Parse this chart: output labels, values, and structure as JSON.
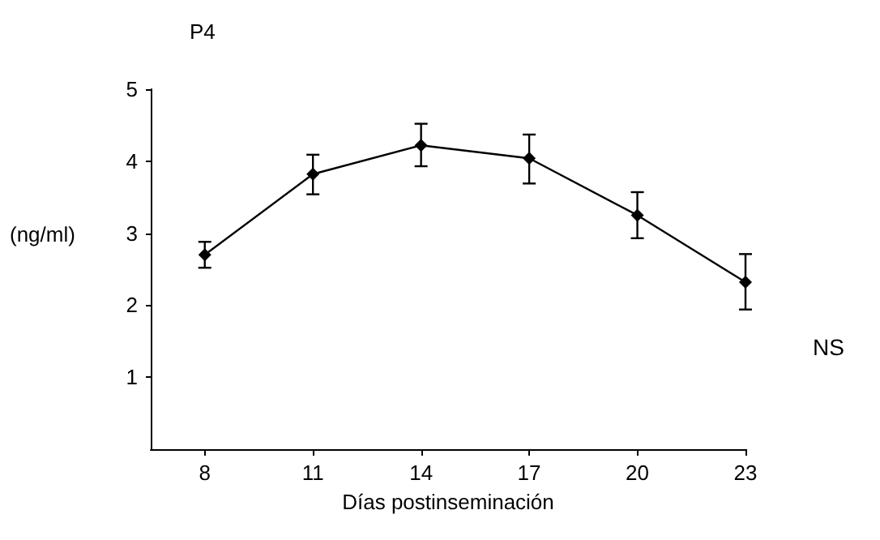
{
  "chart_data": {
    "type": "line",
    "title": "P4",
    "ylabel": "(ng/ml)",
    "xlabel": "Días postinseminación",
    "annotations": [
      "NS"
    ],
    "x": [
      8,
      11,
      14,
      17,
      20,
      23
    ],
    "series": [
      {
        "color": "#000000",
        "values": [
          2.7,
          3.82,
          4.22,
          4.04,
          3.25,
          2.32
        ],
        "errors": [
          [
            2.52,
            2.88
          ],
          [
            3.54,
            4.09
          ],
          [
            3.93,
            4.52
          ],
          [
            3.69,
            4.37
          ],
          [
            2.93,
            3.57
          ],
          [
            1.94,
            2.71
          ]
        ]
      }
    ],
    "xlim": [
      6.5,
      23
    ],
    "xticks": [
      8,
      11,
      14,
      17,
      20,
      23
    ],
    "ylim": [
      0,
      5
    ],
    "yticks": [
      1,
      2,
      3,
      4,
      5
    ],
    "grid": false,
    "marker": "diamond",
    "line_style": "solid"
  }
}
